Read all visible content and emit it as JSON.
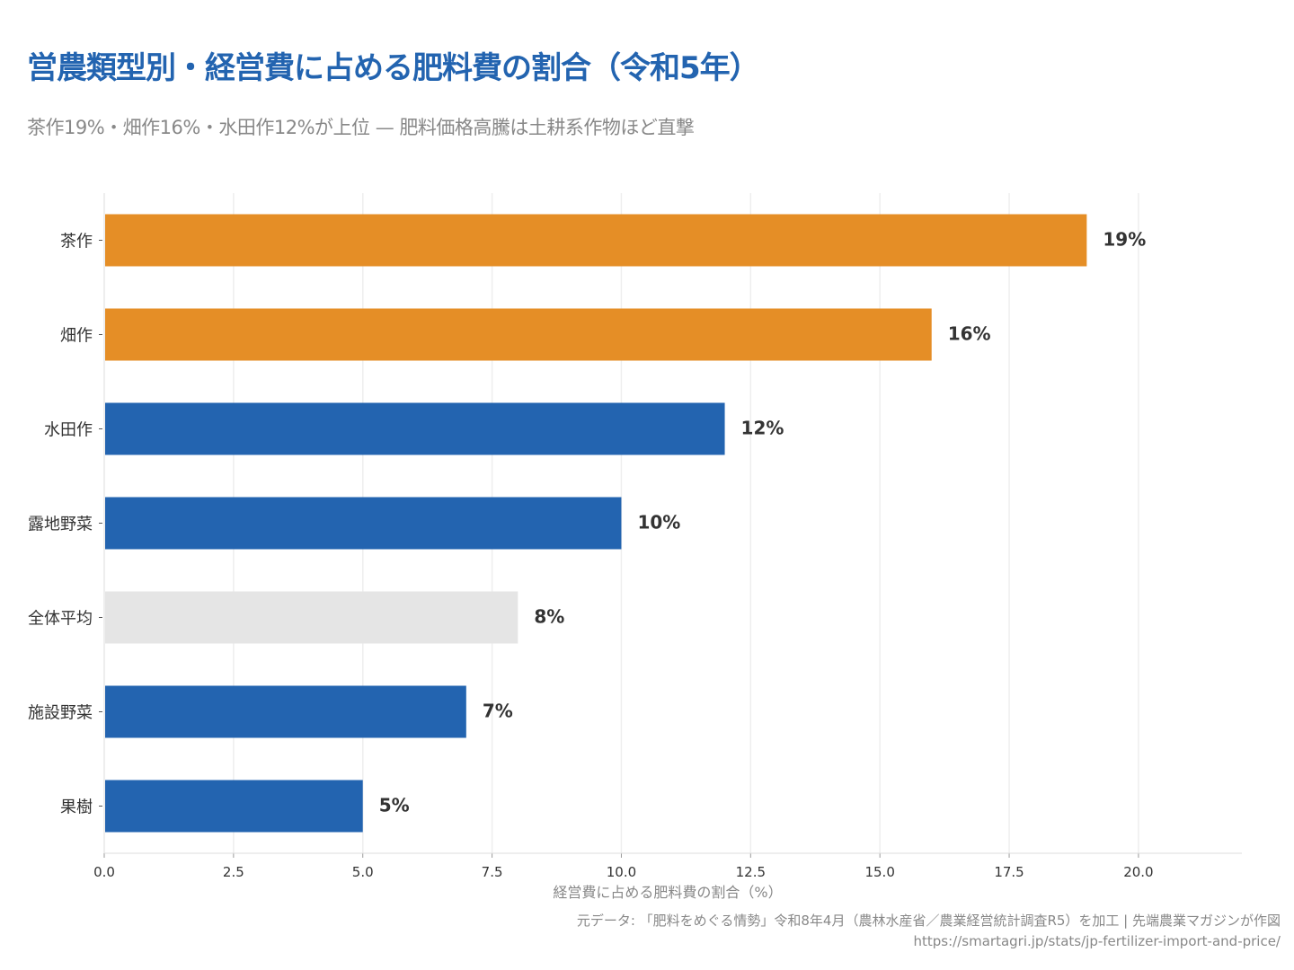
{
  "chart_data": {
    "type": "bar",
    "orientation": "horizontal",
    "title": "営農類型別・経営費に占める肥料費の割合（令和5年）",
    "subtitle": "茶作19%・畑作16%・水田作12%が上位 — 肥料価格高騰は土耕系作物ほど直撃",
    "categories": [
      "茶作",
      "畑作",
      "水田作",
      "露地野菜",
      "全体平均",
      "施設野菜",
      "果樹"
    ],
    "values": [
      19,
      16,
      12,
      10,
      8,
      7,
      5
    ],
    "data_labels": [
      "19%",
      "16%",
      "12%",
      "10%",
      "8%",
      "7%",
      "5%"
    ],
    "bar_colors": [
      "#E58E26",
      "#E58E26",
      "#2364B0",
      "#2364B0",
      "#E5E5E5",
      "#2364B0",
      "#2364B0"
    ],
    "xlabel": "経営費に占める肥料費の割合（%）",
    "ylabel": "",
    "xlim": [
      0,
      22
    ],
    "xticks": [
      "0.0",
      "2.5",
      "5.0",
      "7.5",
      "10.0",
      "12.5",
      "15.0",
      "17.5",
      "20.0"
    ],
    "grid": "vertical"
  },
  "footer": {
    "source": "元データ: 「肥料をめぐる情勢」令和8年4月（農林水産省／農業経営統計調査R5）を加工 | 先端農業マガジンが作図",
    "url": "https://smartagri.jp/stats/jp-fertilizer-import-and-price/"
  }
}
